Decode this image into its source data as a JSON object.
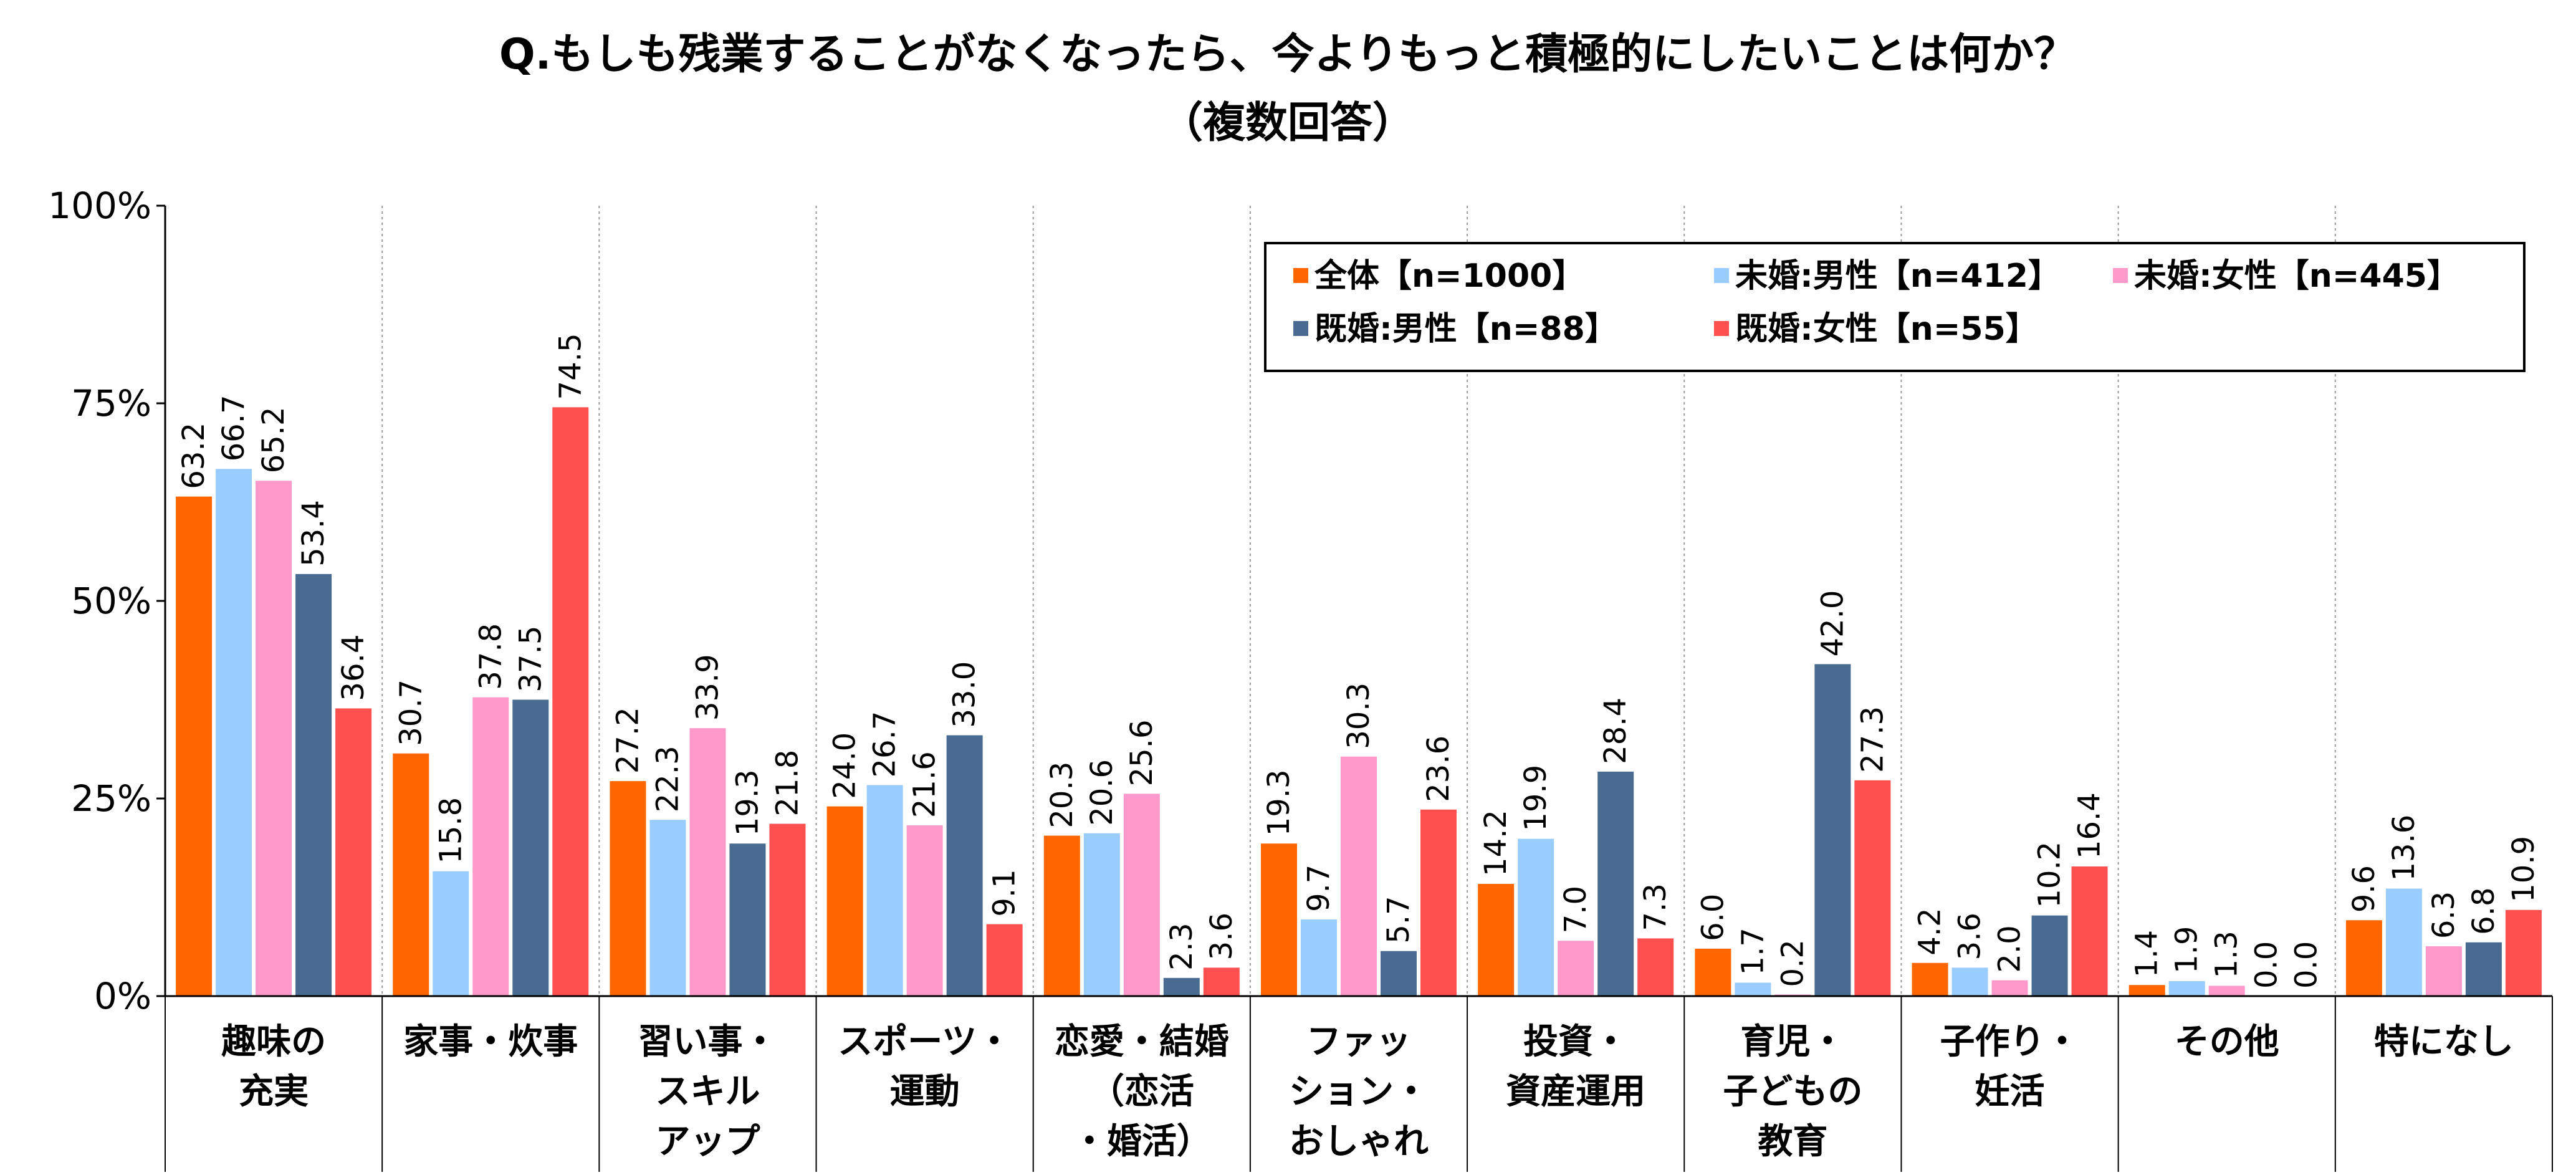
{
  "chart_data": {
    "type": "bar",
    "title": "Q.もしも残業することがなくなったら、今よりもっと積極的にしたいことは何か？",
    "subtitle": "（複数回答）",
    "xlabel": "",
    "ylabel": "",
    "ylim": [
      0,
      100
    ],
    "y_ticks": [
      "0%",
      "25%",
      "50%",
      "75%",
      "100%"
    ],
    "y_tick_values": [
      0,
      25,
      50,
      75,
      100
    ],
    "grid": "vertical-dotted",
    "legend_position": "top-right",
    "categories": [
      [
        "趣味の",
        "充実"
      ],
      [
        "家事・炊事"
      ],
      [
        "習い事・",
        "スキル",
        "アップ"
      ],
      [
        "スポーツ・",
        "運動"
      ],
      [
        "恋愛・結婚",
        "（恋活",
        "・婚活）"
      ],
      [
        "ファッ",
        "ション・",
        "おしゃれ"
      ],
      [
        "投資・",
        "資産運用"
      ],
      [
        "育児・",
        "子どもの",
        "教育"
      ],
      [
        "子作り・",
        "妊活"
      ],
      [
        "その他"
      ],
      [
        "特になし"
      ]
    ],
    "series": [
      {
        "name": "全体【n=1000】",
        "color": "#FF6600",
        "values": [
          63.2,
          30.7,
          27.2,
          24.0,
          20.3,
          19.3,
          14.2,
          6.0,
          4.2,
          1.4,
          9.6
        ]
      },
      {
        "name": "未婚:男性【n=412】",
        "color": "#99CCFF",
        "values": [
          66.7,
          15.8,
          22.3,
          26.7,
          20.6,
          9.7,
          19.9,
          1.7,
          3.6,
          1.9,
          13.6
        ]
      },
      {
        "name": "未婚:女性【n=445】",
        "color": "#FF99CC",
        "values": [
          65.2,
          37.8,
          33.9,
          21.6,
          25.6,
          30.3,
          7.0,
          0.2,
          2.0,
          1.3,
          6.3
        ]
      },
      {
        "name": "既婚:男性【n=88】",
        "color": "#4A6B91",
        "values": [
          53.4,
          37.5,
          19.3,
          33.0,
          2.3,
          5.7,
          28.4,
          42.0,
          10.2,
          0.0,
          6.8
        ]
      },
      {
        "name": "既婚:女性【n=55】",
        "color": "#FF5050",
        "values": [
          36.4,
          74.5,
          21.8,
          9.1,
          3.6,
          23.6,
          7.3,
          27.3,
          16.4,
          0.0,
          10.9
        ]
      }
    ]
  }
}
